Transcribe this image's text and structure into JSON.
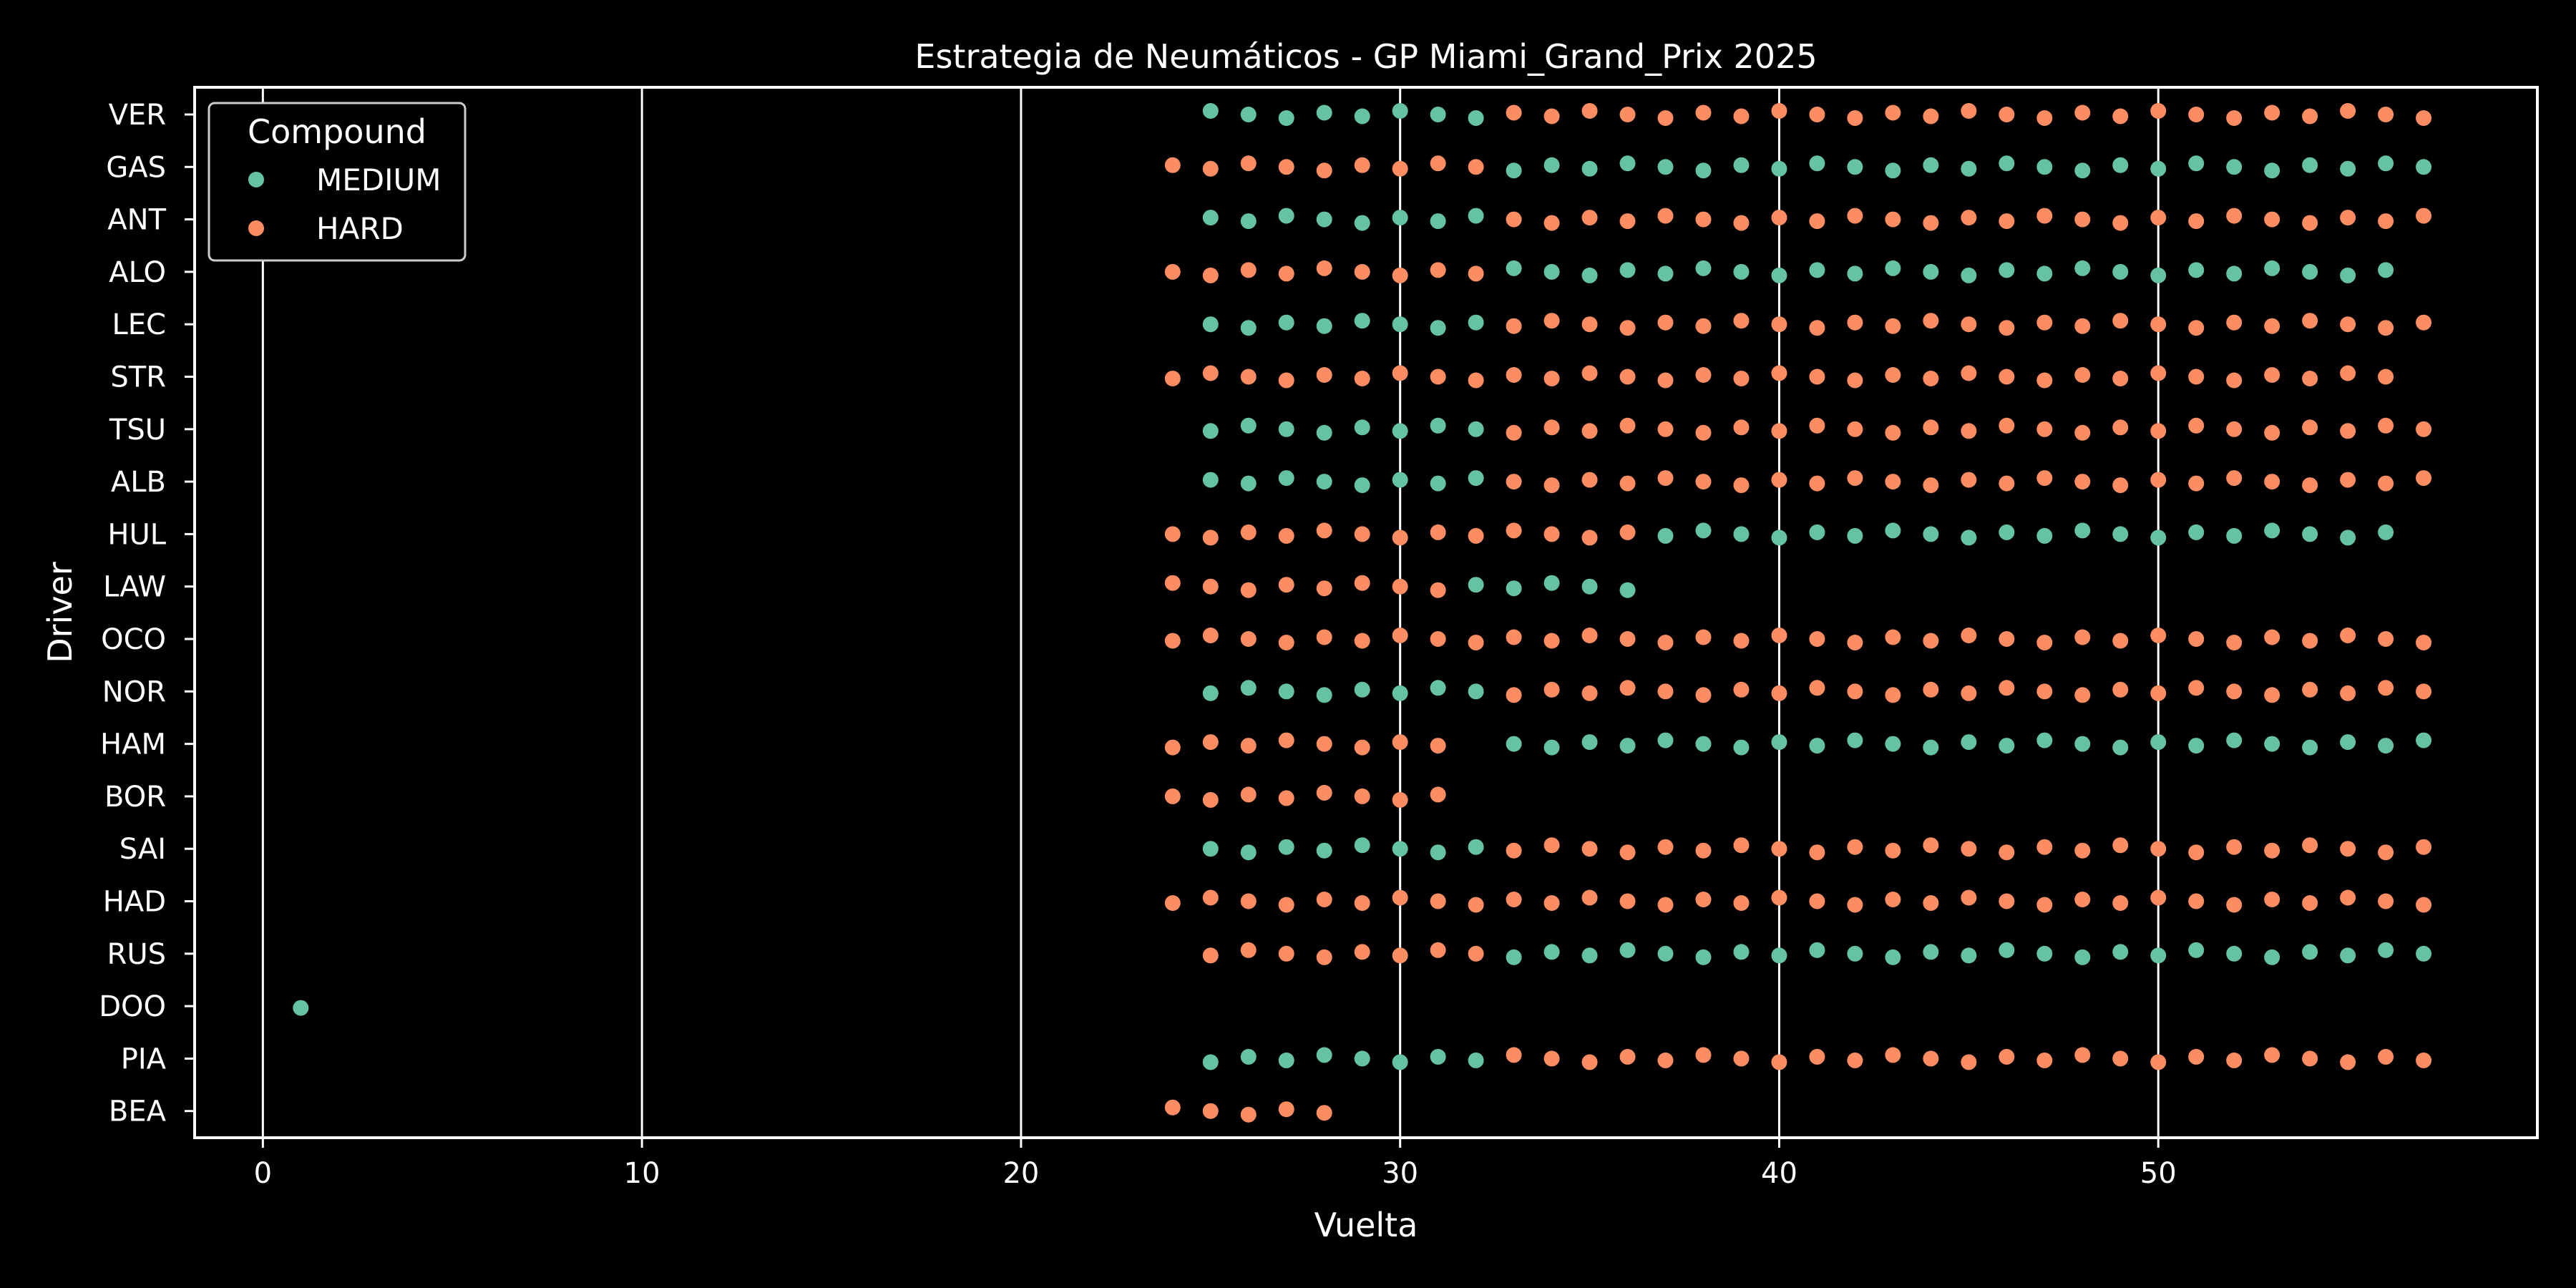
{
  "chart_data": {
    "type": "scatter",
    "title": "Estrategia de Neumáticos - GP Miami_Grand_Prix 2025",
    "xlabel": "Vuelta",
    "ylabel": "Driver",
    "xlim": [
      -1.8,
      60
    ],
    "xticks": [
      0,
      10,
      20,
      30,
      40,
      50
    ],
    "grid": "vertical",
    "background": "#000000",
    "categories": [
      "VER",
      "GAS",
      "ANT",
      "ALO",
      "LEC",
      "STR",
      "TSU",
      "ALB",
      "HUL",
      "LAW",
      "OCO",
      "NOR",
      "HAM",
      "BOR",
      "SAI",
      "HAD",
      "RUS",
      "DOO",
      "PIA",
      "BEA"
    ],
    "legend": {
      "title": "Compound",
      "position": "top-left"
    },
    "series": [
      {
        "name": "MEDIUM",
        "color": "#66c2a5",
        "stints": [
          {
            "driver": "VER",
            "laps": [
              25,
              32
            ]
          },
          {
            "driver": "GAS",
            "laps": [
              33,
              57
            ]
          },
          {
            "driver": "ANT",
            "laps": [
              25,
              32
            ]
          },
          {
            "driver": "ALO",
            "laps": [
              33,
              56
            ]
          },
          {
            "driver": "LEC",
            "laps": [
              25,
              32
            ]
          },
          {
            "driver": "TSU",
            "laps": [
              25,
              32
            ]
          },
          {
            "driver": "ALB",
            "laps": [
              25,
              32
            ]
          },
          {
            "driver": "HUL",
            "laps": [
              37,
              56
            ]
          },
          {
            "driver": "LAW",
            "laps": [
              32,
              36
            ]
          },
          {
            "driver": "NOR",
            "laps": [
              25,
              32
            ]
          },
          {
            "driver": "HAM",
            "laps": [
              33,
              57
            ]
          },
          {
            "driver": "SAI",
            "laps": [
              25,
              32
            ]
          },
          {
            "driver": "RUS",
            "laps": [
              33,
              57
            ]
          },
          {
            "driver": "DOO",
            "laps": [
              1,
              1
            ]
          },
          {
            "driver": "PIA",
            "laps": [
              25,
              32
            ]
          }
        ]
      },
      {
        "name": "HARD",
        "color": "#fc8d62",
        "stints": [
          {
            "driver": "VER",
            "laps": [
              33,
              57
            ]
          },
          {
            "driver": "GAS",
            "laps": [
              24,
              32
            ]
          },
          {
            "driver": "ANT",
            "laps": [
              33,
              57
            ]
          },
          {
            "driver": "ALO",
            "laps": [
              24,
              32
            ]
          },
          {
            "driver": "LEC",
            "laps": [
              33,
              57
            ]
          },
          {
            "driver": "STR",
            "laps": [
              24,
              56
            ]
          },
          {
            "driver": "TSU",
            "laps": [
              33,
              57
            ]
          },
          {
            "driver": "ALB",
            "laps": [
              33,
              57
            ]
          },
          {
            "driver": "HUL",
            "laps": [
              24,
              36
            ]
          },
          {
            "driver": "LAW",
            "laps": [
              24,
              31
            ]
          },
          {
            "driver": "OCO",
            "laps": [
              24,
              57
            ]
          },
          {
            "driver": "NOR",
            "laps": [
              33,
              57
            ]
          },
          {
            "driver": "HAM",
            "laps": [
              24,
              31
            ]
          },
          {
            "driver": "BOR",
            "laps": [
              24,
              31
            ]
          },
          {
            "driver": "SAI",
            "laps": [
              33,
              57
            ]
          },
          {
            "driver": "HAD",
            "laps": [
              24,
              57
            ]
          },
          {
            "driver": "RUS",
            "laps": [
              25,
              32
            ]
          },
          {
            "driver": "PIA",
            "laps": [
              33,
              57
            ]
          },
          {
            "driver": "BEA",
            "laps": [
              24,
              28
            ]
          }
        ]
      }
    ]
  }
}
